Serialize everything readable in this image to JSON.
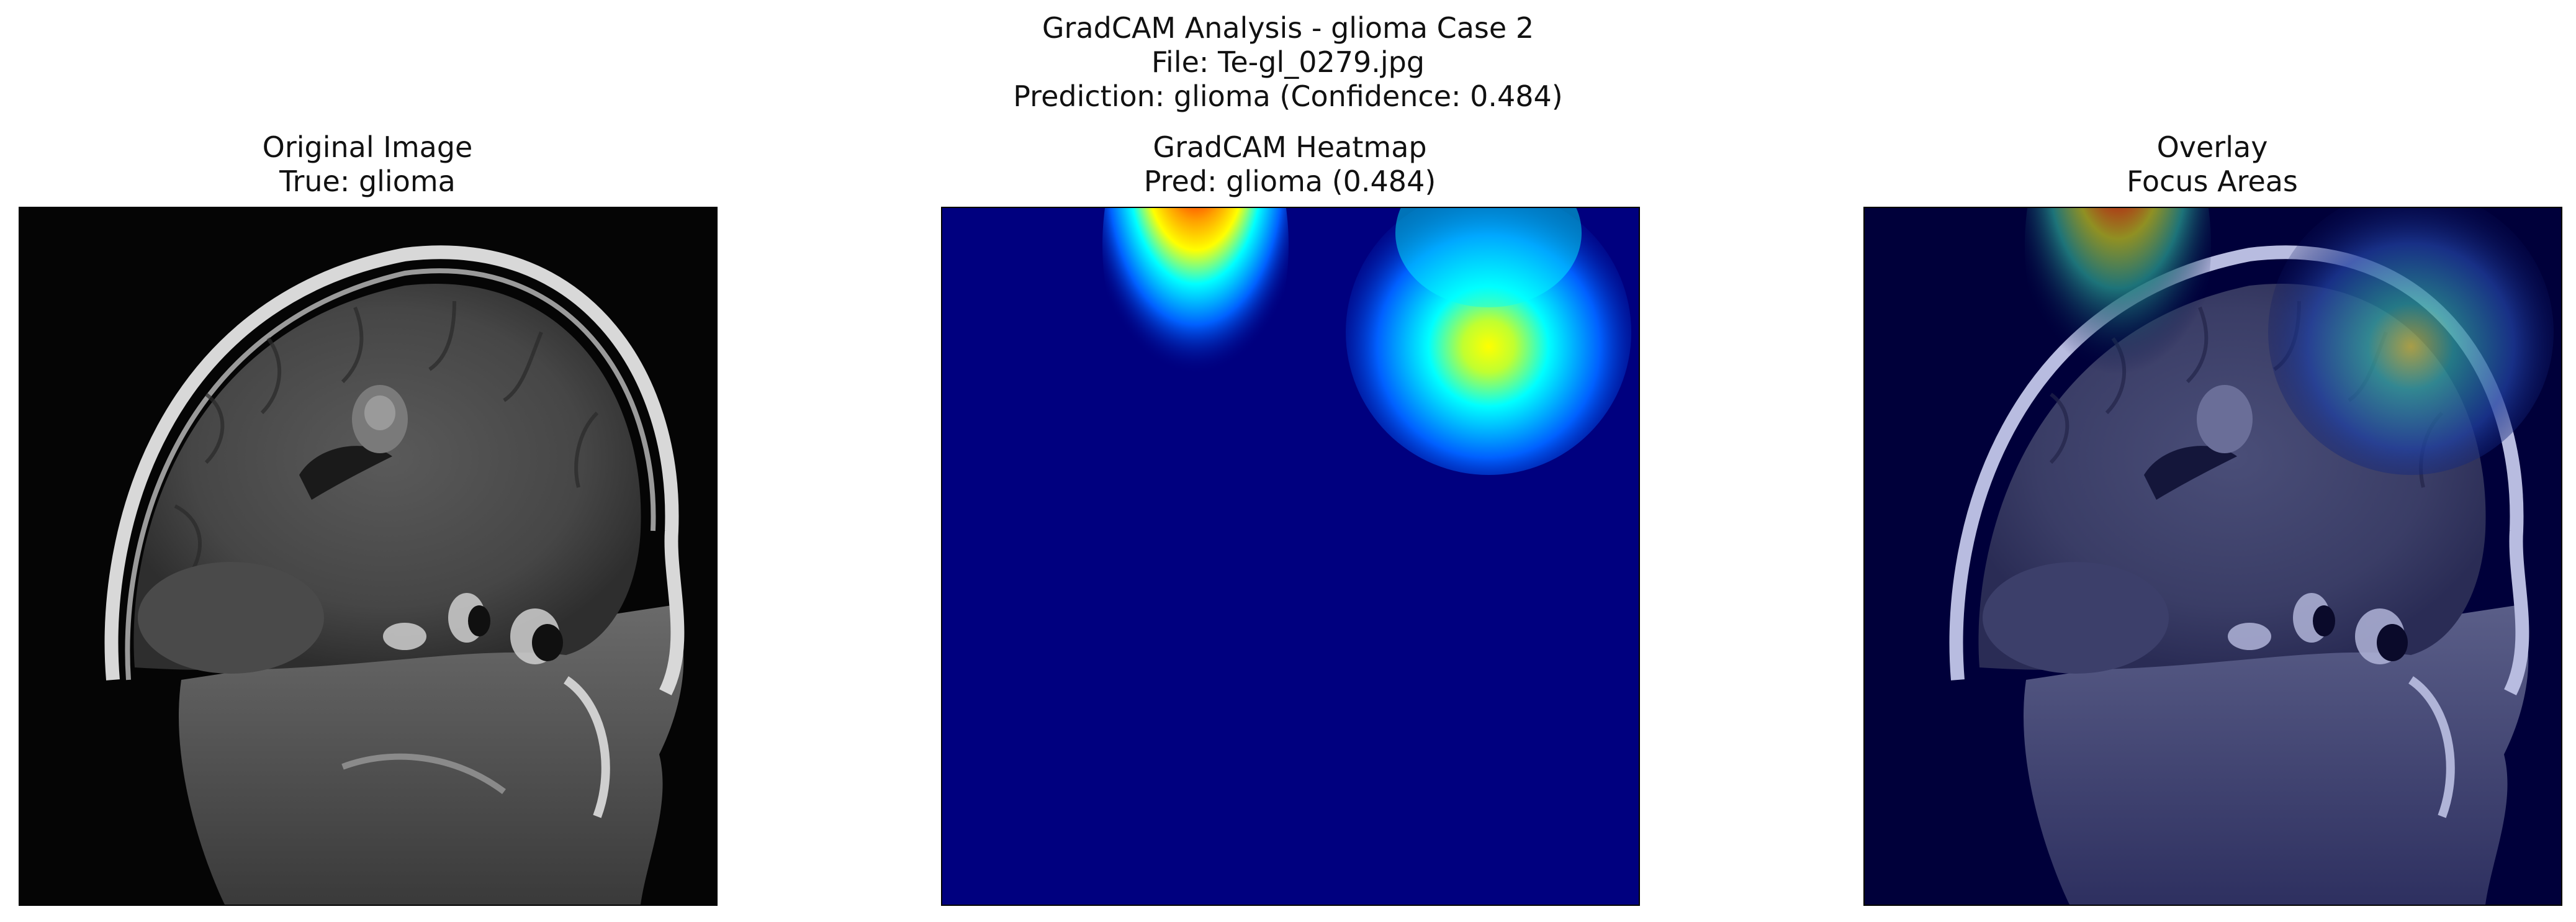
{
  "figure": {
    "title_line1": "GradCAM Analysis - glioma Case 2",
    "title_line2": "File: Te-gl_0279.jpg",
    "title_line3": "Prediction: glioma (Confidence: 0.484)"
  },
  "panels": [
    {
      "id": "original",
      "title_line1": "Original Image",
      "title_line2": "True: glioma"
    },
    {
      "id": "heatmap",
      "title_line1": "GradCAM Heatmap",
      "title_line2": "Pred: glioma (0.484)"
    },
    {
      "id": "overlay",
      "title_line1": "Overlay",
      "title_line2": "Focus Areas"
    }
  ],
  "colors": {
    "background": "#ffffff",
    "heatmap_base": "#00007f",
    "mri_background": "#050505",
    "jet_red": "#b50000",
    "jet_cyan": "#00ffff",
    "jet_yellow": "#ffff00"
  },
  "prediction": {
    "label": "glioma",
    "confidence": 0.484
  }
}
